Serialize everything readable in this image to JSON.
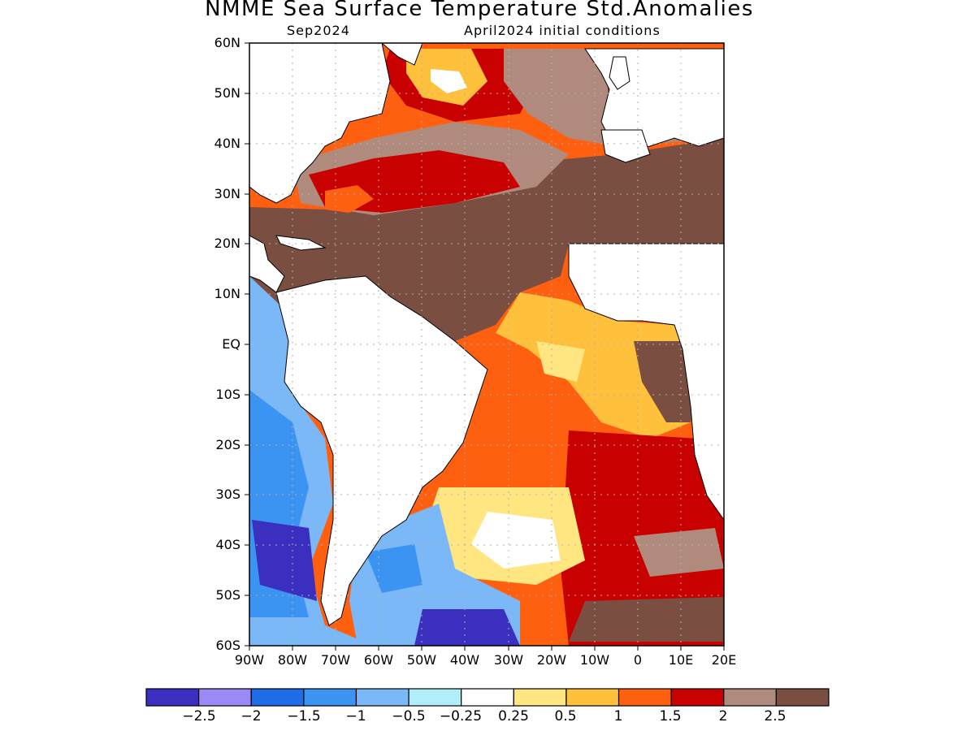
{
  "title": "NMME Sea Surface Temperature Std.Anomalies",
  "subtitle_left": "Sep2024",
  "subtitle_right": "April2024 initial conditions",
  "lat_labels": [
    "60N",
    "50N",
    "40N",
    "30N",
    "20N",
    "10N",
    "EQ",
    "10S",
    "20S",
    "30S",
    "40S",
    "50S",
    "60S"
  ],
  "lon_labels": [
    "90W",
    "80W",
    "70W",
    "60W",
    "50W",
    "40W",
    "30W",
    "20W",
    "10W",
    "0",
    "10E",
    "20E"
  ],
  "colorbar": {
    "labels": [
      "−2.5",
      "−2",
      "−1.5",
      "−1",
      "−0.5",
      "−0.25",
      "0.25",
      "0.5",
      "1",
      "1.5",
      "2",
      "2.5"
    ],
    "colors": [
      "#3b2fc0",
      "#9b8af5",
      "#1e6ce6",
      "#3b93f2",
      "#7ab8f7",
      "#b0eefa",
      "#ffffff",
      "#ffe680",
      "#ffc03c",
      "#ff6010",
      "#c80000",
      "#b08a7c",
      "#7a4e40"
    ]
  },
  "colors": {
    "land": "#ffffff",
    "coast": "#000000",
    "grid": "#b0b0b0"
  }
}
